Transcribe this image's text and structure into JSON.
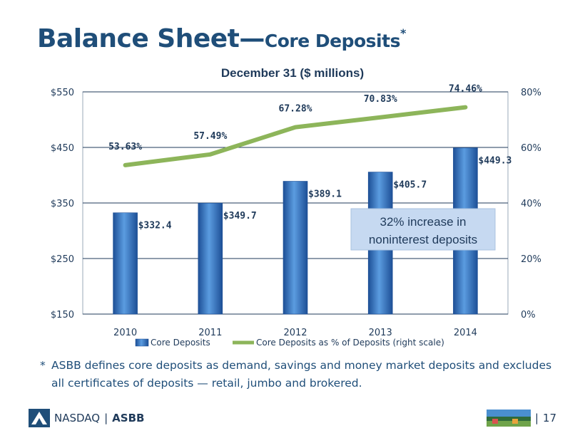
{
  "slide": {
    "title_main": "Balance Sheet—",
    "title_sub": "Core Deposits",
    "title_asterisk": "*",
    "subtitle": "December 31 ($ millions)",
    "footnote_star": "*",
    "footnote": "ASBB defines core deposits as demand, savings and money market deposits and excludes all certificates of deposits — retail, jumbo and brokered.",
    "footer_exchange": "NASDAQ",
    "footer_separator": "|",
    "footer_ticker": "ASBB",
    "footer_pipe": "|",
    "page_number": "17"
  },
  "colors": {
    "title": "#1f4e79",
    "bar": "#2e6fbf",
    "bar_light": "#5b9ce0",
    "bar_dark": "#1d4f96",
    "line": "#8db55a",
    "callout_bg": "#c6d9f1",
    "text": "#1f3a5a"
  },
  "chart_data": {
    "type": "bar",
    "categories": [
      "2010",
      "2011",
      "2012",
      "2013",
      "2014"
    ],
    "series": [
      {
        "name": "Core Deposits",
        "type": "bar",
        "axis": "left",
        "values": [
          332.4,
          349.7,
          389.1,
          405.7,
          449.3
        ],
        "labels": [
          "$332.4",
          "$349.7",
          "$389.1",
          "$405.7",
          "$449.3"
        ]
      },
      {
        "name": "Core Deposits as % of Deposits (right scale)",
        "type": "line",
        "axis": "right",
        "values": [
          53.63,
          57.49,
          67.28,
          70.83,
          74.46
        ],
        "labels": [
          "53.63%",
          "57.49%",
          "67.28%",
          "70.83%",
          "74.46%"
        ]
      }
    ],
    "y_left": {
      "min": 150,
      "max": 550,
      "ticks": [
        150,
        250,
        350,
        450,
        550
      ],
      "tick_labels": [
        "$150",
        "$250",
        "$350",
        "$450",
        "$550"
      ]
    },
    "y_right": {
      "min": 0,
      "max": 80,
      "ticks": [
        0,
        20,
        40,
        60,
        80
      ],
      "tick_labels": [
        "0%",
        "20%",
        "40%",
        "60%",
        "80%"
      ]
    },
    "title": "December 31 ($ millions)",
    "legend": [
      "Core Deposits",
      "Core Deposits as % of Deposits (right scale)"
    ],
    "legend_position": "bottom",
    "gridlines": true,
    "annotation": {
      "line1": "32% increase in",
      "line2": "noninterest deposits"
    }
  }
}
